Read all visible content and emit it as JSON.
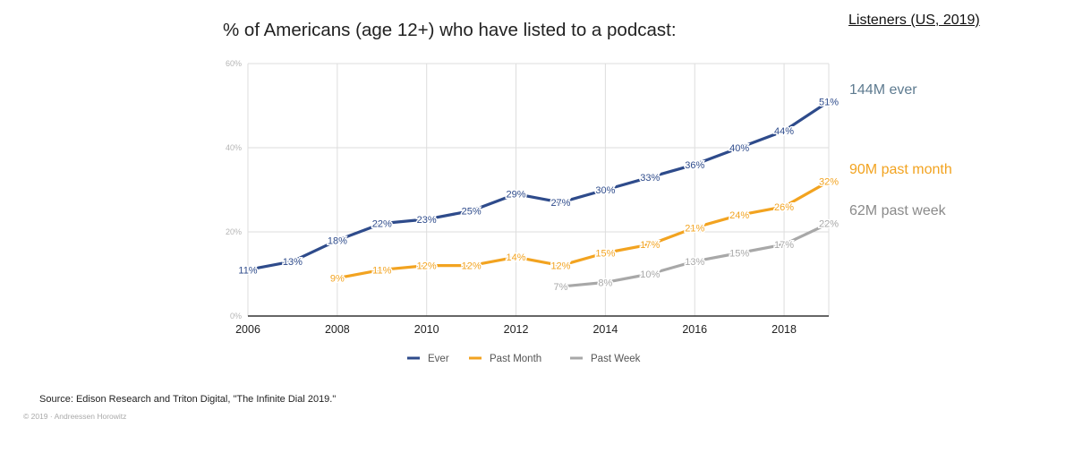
{
  "header": {
    "title": "% of Americans (age 12+) who have listed to a podcast:",
    "side_title": "Listeners (US, 2019)"
  },
  "side_notes": [
    {
      "text": "144M ever",
      "color": "#5e7b90"
    },
    {
      "text": "90M past month",
      "color": "#f2a320"
    },
    {
      "text": "62M past week",
      "color": "#8a8a8a"
    }
  ],
  "footer": {
    "source": "Source: Edison Research and Triton Digital, \"The Infinite Dial 2019.\"",
    "copyright": "© 2019 · Andreessen Horowitz"
  },
  "chart_data": {
    "type": "line",
    "title": "% of Americans (age 12+) who have listed to a podcast:",
    "xlabel": "",
    "ylabel": "",
    "xlim": [
      2006,
      2019
    ],
    "ylim": [
      0,
      60
    ],
    "x_ticks": [
      2006,
      2008,
      2010,
      2012,
      2014,
      2016,
      2018
    ],
    "y_ticks": [
      0,
      20,
      40,
      60
    ],
    "y_tick_labels": [
      "0%",
      "20%",
      "40%",
      "60%"
    ],
    "grid": true,
    "legend_position": "bottom",
    "series": [
      {
        "name": "Ever",
        "color": "#2e4b8b",
        "x": [
          2006,
          2007,
          2008,
          2009,
          2010,
          2011,
          2012,
          2013,
          2014,
          2015,
          2016,
          2017,
          2018,
          2019
        ],
        "values": [
          11,
          13,
          18,
          22,
          23,
          25,
          29,
          27,
          30,
          33,
          36,
          40,
          44,
          51
        ],
        "labels": [
          "11%",
          "13%",
          "18%",
          "22%",
          "23%",
          "25%",
          "29%",
          "27%",
          "30%",
          "33%",
          "36%",
          "40%",
          "44%",
          "51%"
        ]
      },
      {
        "name": "Past Month",
        "color": "#f2a320",
        "x": [
          2008,
          2009,
          2010,
          2011,
          2012,
          2013,
          2014,
          2015,
          2016,
          2017,
          2018,
          2019
        ],
        "values": [
          9,
          11,
          12,
          12,
          14,
          12,
          15,
          17,
          21,
          24,
          26,
          32
        ],
        "labels": [
          "9%",
          "11%",
          "12%",
          "12%",
          "14%",
          "12%",
          "15%",
          "17%",
          "21%",
          "24%",
          "26%",
          "32%"
        ]
      },
      {
        "name": "Past Week",
        "color": "#a8a8a8",
        "x": [
          2013,
          2014,
          2015,
          2016,
          2017,
          2018,
          2019
        ],
        "values": [
          7,
          8,
          10,
          13,
          15,
          17,
          22
        ],
        "labels": [
          "7%",
          "8%",
          "10%",
          "13%",
          "15%",
          "17%",
          "22%"
        ]
      }
    ]
  }
}
